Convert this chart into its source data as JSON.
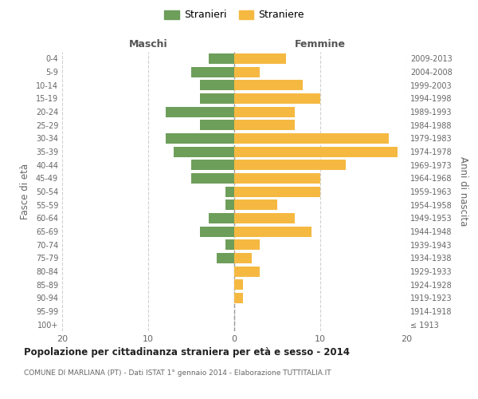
{
  "age_groups": [
    "100+",
    "95-99",
    "90-94",
    "85-89",
    "80-84",
    "75-79",
    "70-74",
    "65-69",
    "60-64",
    "55-59",
    "50-54",
    "45-49",
    "40-44",
    "35-39",
    "30-34",
    "25-29",
    "20-24",
    "15-19",
    "10-14",
    "5-9",
    "0-4"
  ],
  "birth_years": [
    "≤ 1913",
    "1914-1918",
    "1919-1923",
    "1924-1928",
    "1929-1933",
    "1934-1938",
    "1939-1943",
    "1944-1948",
    "1949-1953",
    "1954-1958",
    "1959-1963",
    "1964-1968",
    "1969-1973",
    "1974-1978",
    "1979-1983",
    "1984-1988",
    "1989-1993",
    "1994-1998",
    "1999-2003",
    "2004-2008",
    "2009-2013"
  ],
  "maschi": [
    0,
    0,
    0,
    0,
    0,
    2,
    1,
    4,
    3,
    1,
    1,
    5,
    5,
    7,
    8,
    4,
    8,
    4,
    4,
    5,
    3
  ],
  "femmine": [
    0,
    0,
    1,
    1,
    3,
    2,
    3,
    9,
    7,
    5,
    10,
    10,
    13,
    19,
    18,
    7,
    7,
    10,
    8,
    3,
    6
  ],
  "color_maschi": "#6d9e5a",
  "color_femmine": "#f5b942",
  "title": "Popolazione per cittadinanza straniera per età e sesso - 2014",
  "subtitle": "COMUNE DI MARLIANA (PT) - Dati ISTAT 1° gennaio 2014 - Elaborazione TUTTITALIA.IT",
  "xlabel_left": "Maschi",
  "xlabel_right": "Femmine",
  "ylabel_left": "Fasce di età",
  "ylabel_right": "Anni di nascita",
  "legend_maschi": "Stranieri",
  "legend_femmine": "Straniere",
  "xlim": 20,
  "background_color": "#ffffff",
  "grid_color": "#d0d0d0"
}
